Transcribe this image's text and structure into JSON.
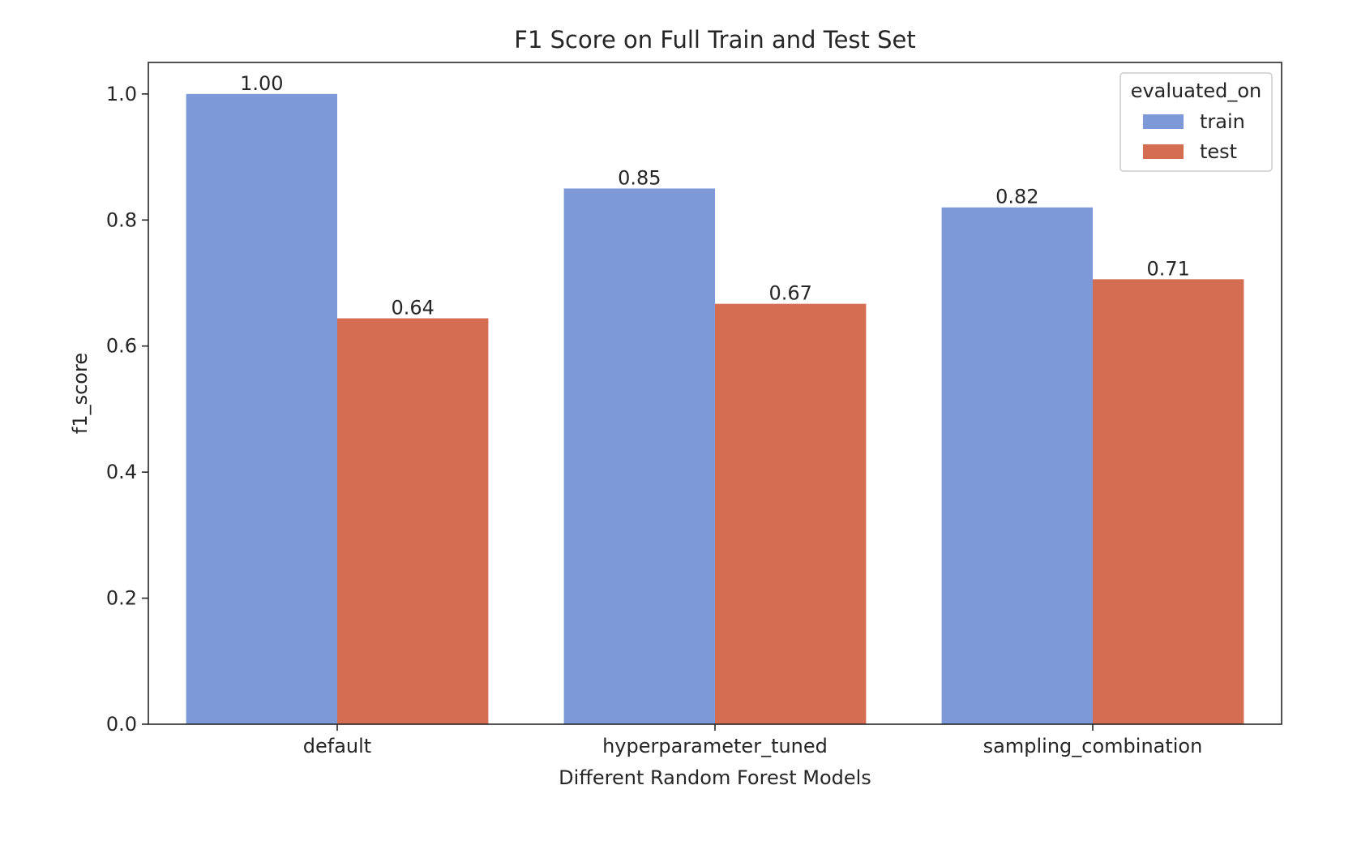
{
  "chart_data": {
    "type": "bar",
    "title": "F1 Score on Full Train and Test Set",
    "xlabel": "Different Random Forest Models",
    "ylabel": "f1_score",
    "categories": [
      "default",
      "hyperparameter_tuned",
      "sampling_combination"
    ],
    "series": [
      {
        "name": "train",
        "values": [
          1.0,
          0.85,
          0.82
        ],
        "labels": [
          "1.00",
          "0.85",
          "0.82"
        ],
        "color": "#7d99d8"
      },
      {
        "name": "test",
        "values": [
          0.644,
          0.667,
          0.706
        ],
        "labels": [
          "0.64",
          "0.67",
          "0.71"
        ],
        "color": "#d56d52"
      }
    ],
    "ylim": [
      0,
      1.05
    ],
    "yticks": [
      0.0,
      0.2,
      0.4,
      0.6,
      0.8,
      1.0
    ],
    "ytick_labels": [
      "0.0",
      "0.2",
      "0.4",
      "0.6",
      "0.8",
      "1.0"
    ],
    "grid": false,
    "legend": {
      "title": "evaluated_on",
      "placement": "top-right"
    },
    "colors": {
      "axis": "#262626",
      "text": "#262626",
      "legend_border": "#cccccc"
    }
  }
}
